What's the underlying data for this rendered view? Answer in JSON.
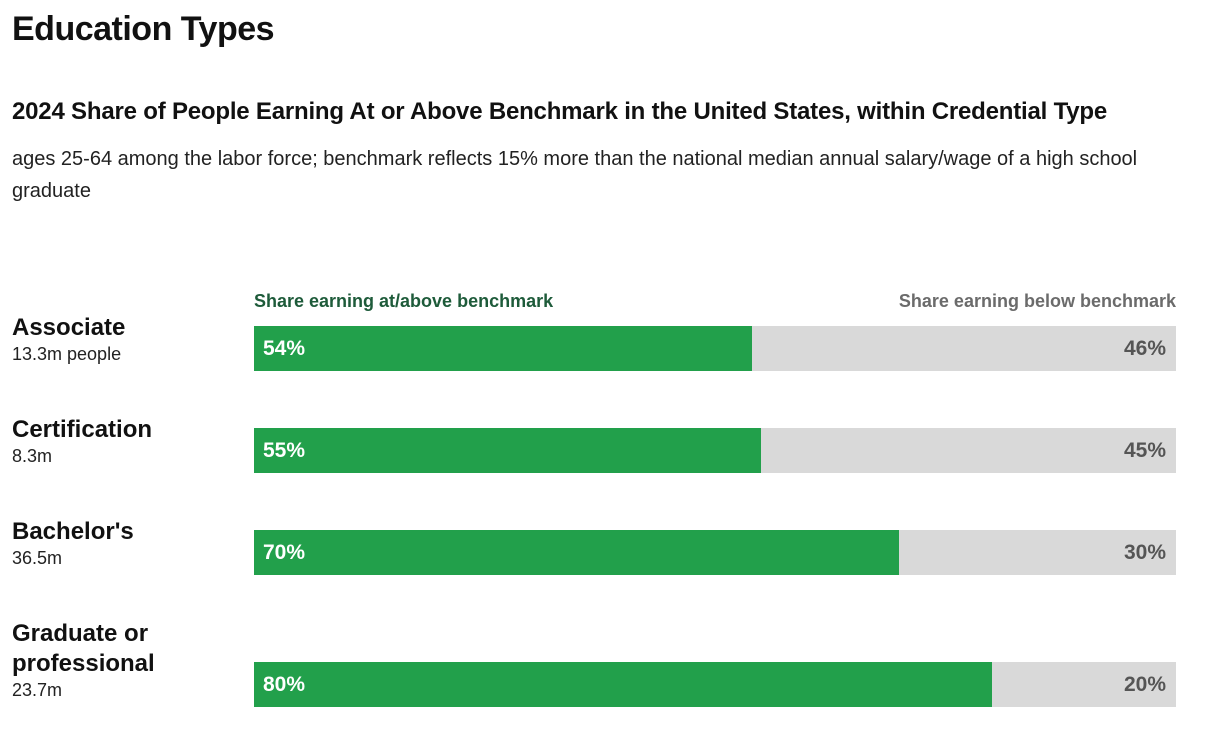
{
  "page": {
    "title": "Education Types"
  },
  "chart_data": {
    "type": "bar",
    "orientation": "horizontal",
    "stacked": true,
    "title": "2024 Share of People Earning At or Above Benchmark in the United States, within Credential Type",
    "subtitle": "ages 25-64 among the labor force; benchmark reflects 15% more than the national median annual salary/wage of a high school graduate",
    "xlim": [
      0,
      100
    ],
    "legend": {
      "at_or_above": "Share earning at/above benchmark",
      "below": "Share earning below benchmark"
    },
    "colors": {
      "at_or_above": "#22a04b",
      "below": "#d9d9d9"
    },
    "categories": [
      "Associate",
      "Certification",
      "Bachelor's",
      "Graduate or professional"
    ],
    "rows": [
      {
        "name": "Associate",
        "people": "13.3m people",
        "at_or_above": 54,
        "below": 46,
        "at_label": "54%",
        "below_label": "46%"
      },
      {
        "name": "Certification",
        "people": "8.3m",
        "at_or_above": 55,
        "below": 45,
        "at_label": "55%",
        "below_label": "45%"
      },
      {
        "name": "Bachelor's",
        "people": "36.5m",
        "at_or_above": 70,
        "below": 30,
        "at_label": "70%",
        "below_label": "30%"
      },
      {
        "name": "Graduate or professional",
        "people": "23.7m",
        "at_or_above": 80,
        "below": 20,
        "at_label": "80%",
        "below_label": "20%"
      }
    ],
    "series": [
      {
        "name": "Share earning at/above benchmark",
        "values": [
          54,
          55,
          70,
          80
        ]
      },
      {
        "name": "Share earning below benchmark",
        "values": [
          46,
          45,
          30,
          20
        ]
      }
    ]
  }
}
